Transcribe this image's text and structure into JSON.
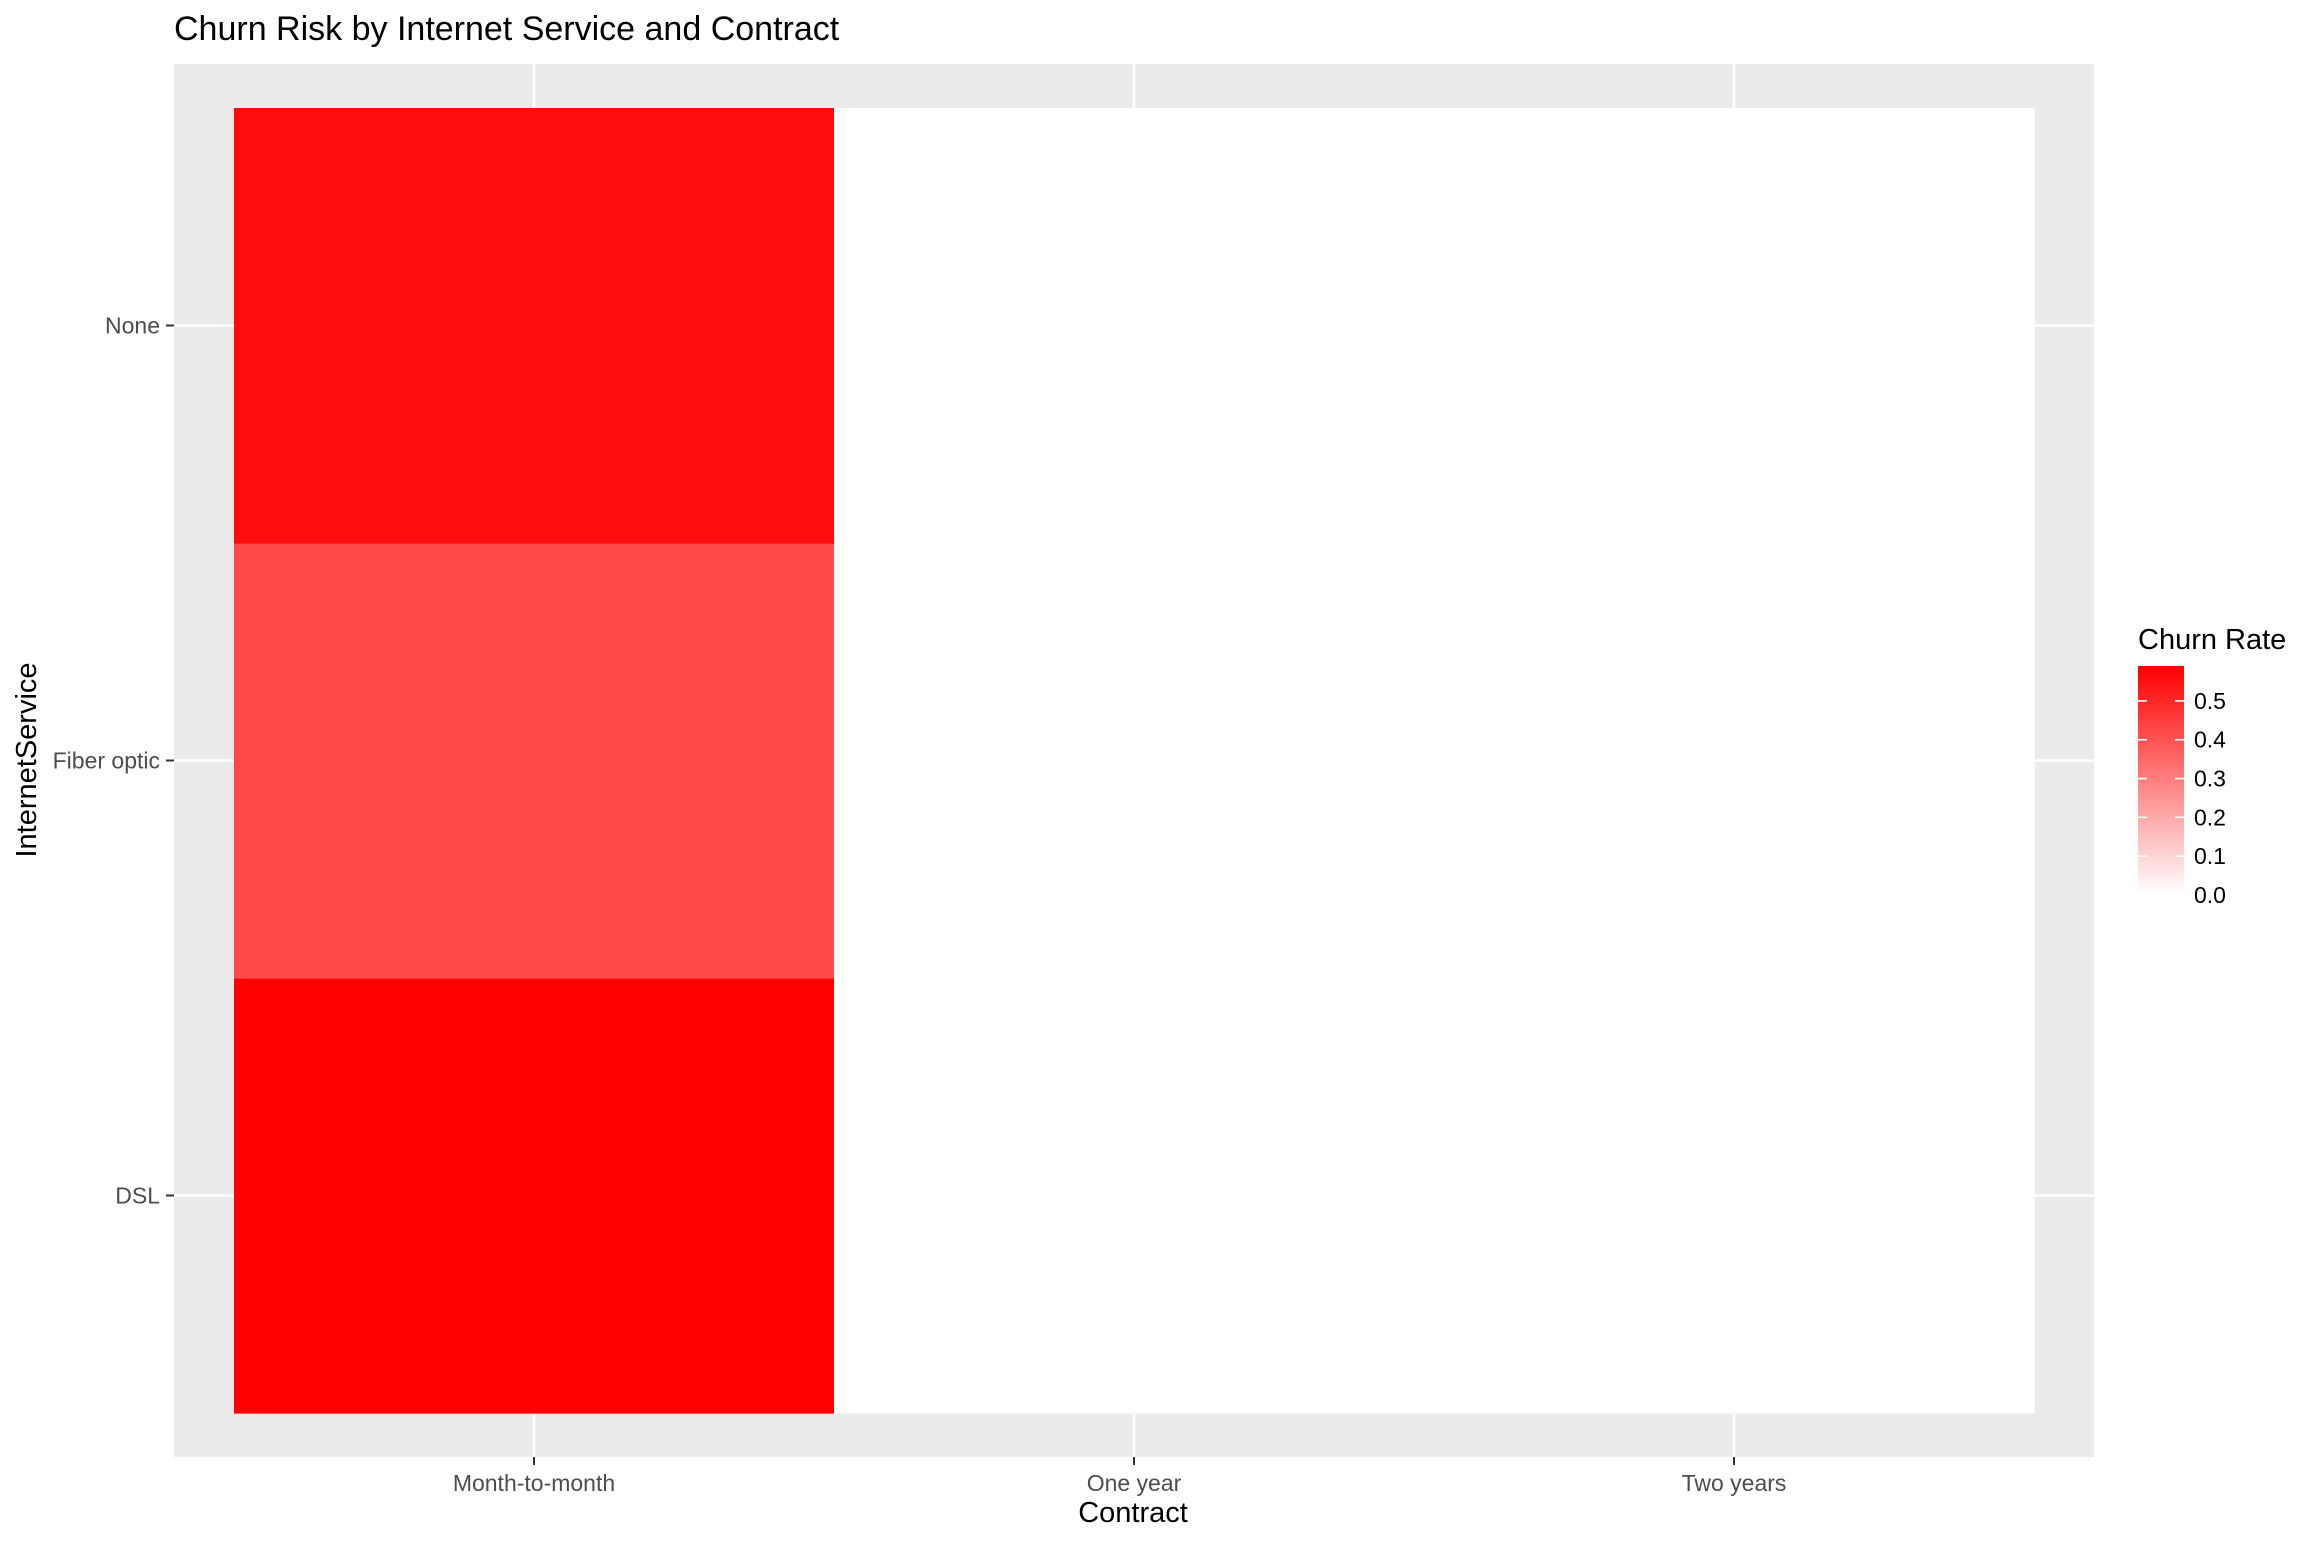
{
  "chart_data": {
    "type": "heatmap",
    "title": "Churn Risk by Internet Service and Contract",
    "xlabel": "Contract",
    "ylabel": "InternetService",
    "x_categories": [
      "Month-to-month",
      "One year",
      "Two years"
    ],
    "y_categories": [
      "DSL",
      "Fiber optic",
      "None"
    ],
    "cells": [
      {
        "x": "Month-to-month",
        "y": "DSL",
        "value": 0.59
      },
      {
        "x": "Month-to-month",
        "y": "Fiber optic",
        "value": 0.42
      },
      {
        "x": "Month-to-month",
        "y": "None",
        "value": 0.56
      },
      {
        "x": "One year",
        "y": "DSL",
        "value": 0.0
      },
      {
        "x": "One year",
        "y": "Fiber optic",
        "value": 0.0
      },
      {
        "x": "One year",
        "y": "None",
        "value": 0.0
      },
      {
        "x": "Two years",
        "y": "DSL",
        "value": 0.0
      },
      {
        "x": "Two years",
        "y": "Fiber optic",
        "value": 0.0
      },
      {
        "x": "Two years",
        "y": "None",
        "value": 0.0
      }
    ],
    "legend": {
      "title": "Churn Rate",
      "ticks": [
        "0.0",
        "0.1",
        "0.2",
        "0.3",
        "0.4",
        "0.5"
      ],
      "tick_values": [
        0.0,
        0.1,
        0.2,
        0.3,
        0.4,
        0.5
      ],
      "range": [
        0.0,
        0.59
      ],
      "position": "right"
    },
    "colors": {
      "low": "#ffffff",
      "high": "#ff0000",
      "panel_background": "#ebebeb",
      "grid": "#ffffff"
    },
    "grid": true
  }
}
